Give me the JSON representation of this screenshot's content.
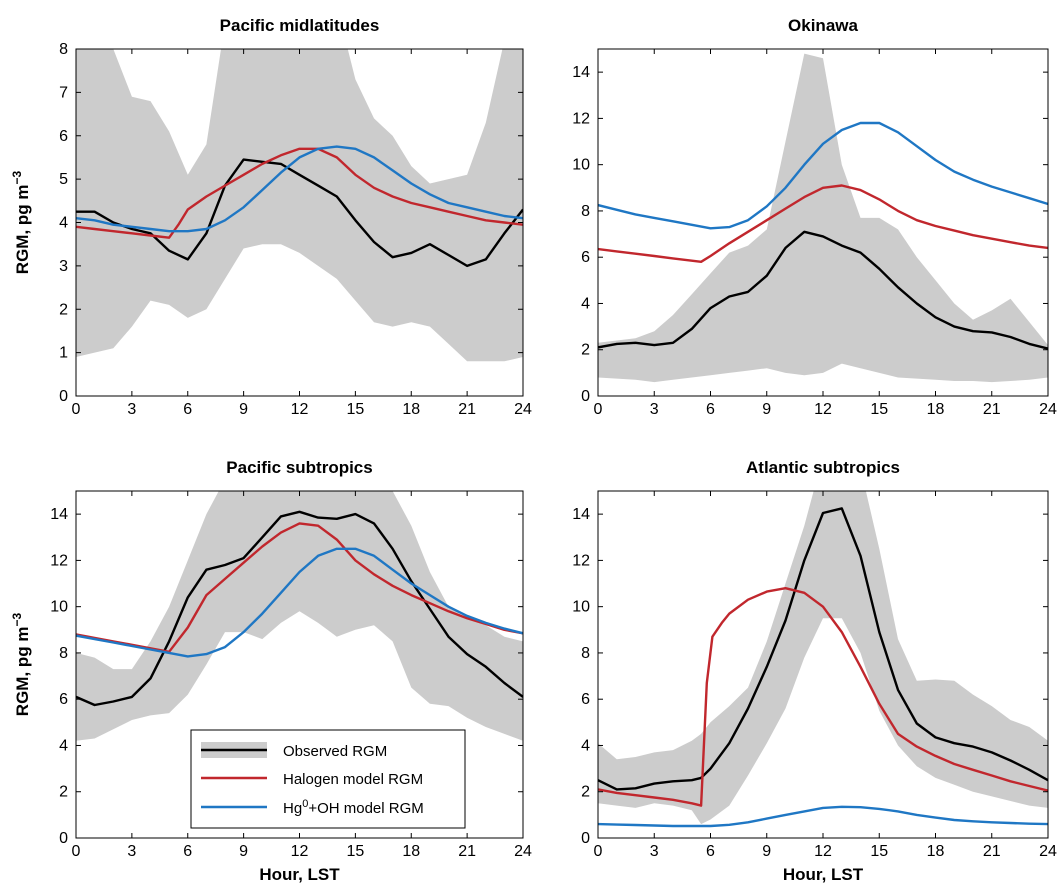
{
  "colors": {
    "band": "#cccccc",
    "observed": "#000000",
    "halogen": "#c1272d",
    "oh": "#1f77c4"
  },
  "legend": {
    "observed": "Observed RGM",
    "halogen": "Halogen model RGM",
    "oh_prefix": "Hg",
    "oh_sup": "0",
    "oh_suffix": "+OH model RGM"
  },
  "chart_data": [
    {
      "type": "line",
      "title": "Pacific midlatitudes",
      "xlabel": "",
      "ylabel": "RGM, pg m-3",
      "xlim": [
        0,
        24
      ],
      "ylim": [
        0,
        8
      ],
      "xticks": [
        0,
        3,
        6,
        9,
        12,
        15,
        18,
        21,
        24
      ],
      "yticks": [
        0,
        1,
        2,
        3,
        4,
        5,
        6,
        7,
        8
      ],
      "band": {
        "x": [
          0,
          1,
          2,
          3,
          4,
          5,
          6,
          7,
          8,
          9,
          10,
          11,
          12,
          13,
          14,
          15,
          16,
          17,
          18,
          19,
          20,
          21,
          22,
          23,
          24
        ],
        "upper": [
          8.6,
          8.3,
          8.0,
          6.9,
          6.8,
          6.1,
          5.1,
          5.8,
          8.6,
          9.5,
          9.8,
          9.9,
          9.8,
          9.5,
          9.0,
          7.3,
          6.4,
          6.0,
          5.3,
          4.9,
          5.0,
          5.1,
          6.3,
          8.2,
          9.5
        ],
        "lower": [
          0.9,
          1.0,
          1.1,
          1.6,
          2.2,
          2.1,
          1.8,
          2.0,
          2.7,
          3.4,
          3.5,
          3.5,
          3.3,
          3.0,
          2.7,
          2.2,
          1.7,
          1.6,
          1.7,
          1.6,
          1.2,
          0.8,
          0.8,
          0.8,
          0.9
        ]
      },
      "series": [
        {
          "name": "Observed RGM",
          "key": "observed",
          "x": [
            0,
            1,
            2,
            3,
            4,
            5,
            6,
            7,
            8,
            9,
            10,
            11,
            12,
            13,
            14,
            15,
            16,
            17,
            18,
            19,
            20,
            21,
            22,
            23,
            24
          ],
          "y": [
            4.25,
            4.25,
            4.0,
            3.85,
            3.75,
            3.35,
            3.15,
            3.75,
            4.85,
            5.45,
            5.4,
            5.35,
            5.1,
            4.85,
            4.6,
            4.05,
            3.55,
            3.2,
            3.3,
            3.5,
            3.25,
            3.0,
            3.15,
            3.75,
            4.3
          ]
        },
        {
          "name": "Halogen model RGM",
          "key": "halogen",
          "x": [
            0,
            1,
            2,
            3,
            4,
            5,
            5.5,
            6,
            7,
            8,
            9,
            10,
            11,
            12,
            13,
            14,
            15,
            16,
            17,
            18,
            19,
            20,
            21,
            22,
            23,
            24
          ],
          "y": [
            3.9,
            3.85,
            3.8,
            3.75,
            3.7,
            3.65,
            3.95,
            4.3,
            4.6,
            4.85,
            5.1,
            5.35,
            5.55,
            5.7,
            5.7,
            5.5,
            5.1,
            4.8,
            4.6,
            4.45,
            4.35,
            4.25,
            4.15,
            4.05,
            4.0,
            3.95
          ]
        },
        {
          "name": "Hg0+OH model RGM",
          "key": "oh",
          "x": [
            0,
            1,
            2,
            3,
            4,
            5,
            6,
            7,
            8,
            9,
            10,
            11,
            12,
            13,
            14,
            15,
            16,
            17,
            18,
            19,
            20,
            21,
            22,
            23,
            24
          ],
          "y": [
            4.1,
            4.05,
            3.95,
            3.9,
            3.85,
            3.8,
            3.8,
            3.85,
            4.05,
            4.35,
            4.75,
            5.15,
            5.5,
            5.7,
            5.75,
            5.7,
            5.5,
            5.2,
            4.9,
            4.65,
            4.45,
            4.35,
            4.25,
            4.15,
            4.1
          ]
        }
      ]
    },
    {
      "type": "line",
      "title": "Okinawa",
      "xlabel": "",
      "ylabel": "",
      "xlim": [
        0,
        24
      ],
      "ylim": [
        0,
        15
      ],
      "xticks": [
        0,
        3,
        6,
        9,
        12,
        15,
        18,
        21,
        24
      ],
      "yticks": [
        0,
        2,
        4,
        6,
        8,
        10,
        12,
        14
      ],
      "band": {
        "x": [
          0,
          1,
          2,
          3,
          4,
          5,
          6,
          7,
          8,
          9,
          10,
          11,
          12,
          13,
          14,
          15,
          16,
          17,
          18,
          19,
          20,
          21,
          22,
          23,
          24
        ],
        "upper": [
          2.3,
          2.4,
          2.5,
          2.8,
          3.5,
          4.4,
          5.3,
          6.2,
          6.5,
          7.2,
          11.0,
          14.8,
          14.6,
          10.0,
          7.7,
          7.7,
          7.2,
          6.0,
          5.0,
          4.0,
          3.3,
          3.7,
          4.2,
          3.2,
          2.2
        ],
        "lower": [
          0.8,
          0.75,
          0.7,
          0.6,
          0.7,
          0.8,
          0.9,
          1.0,
          1.1,
          1.2,
          1.0,
          0.9,
          1.0,
          1.4,
          1.2,
          1.0,
          0.8,
          0.75,
          0.7,
          0.65,
          0.65,
          0.6,
          0.65,
          0.7,
          0.8
        ]
      },
      "series": [
        {
          "name": "Observed RGM",
          "key": "observed",
          "x": [
            0,
            1,
            2,
            3,
            4,
            5,
            6,
            7,
            8,
            9,
            10,
            11,
            12,
            13,
            14,
            15,
            16,
            17,
            18,
            19,
            20,
            21,
            22,
            23,
            24
          ],
          "y": [
            2.1,
            2.25,
            2.3,
            2.2,
            2.3,
            2.9,
            3.8,
            4.3,
            4.5,
            5.2,
            6.4,
            7.1,
            6.9,
            6.5,
            6.2,
            5.5,
            4.7,
            4.0,
            3.4,
            3.0,
            2.8,
            2.75,
            2.55,
            2.25,
            2.05
          ]
        },
        {
          "name": "Halogen model RGM",
          "key": "halogen",
          "x": [
            0,
            1,
            2,
            3,
            4,
            5,
            5.5,
            6,
            7,
            8,
            9,
            10,
            11,
            12,
            13,
            14,
            15,
            16,
            17,
            18,
            19,
            20,
            21,
            22,
            23,
            24
          ],
          "y": [
            6.35,
            6.25,
            6.15,
            6.05,
            5.95,
            5.85,
            5.8,
            6.05,
            6.6,
            7.1,
            7.6,
            8.1,
            8.6,
            9.0,
            9.1,
            8.9,
            8.5,
            8.0,
            7.6,
            7.35,
            7.15,
            6.95,
            6.8,
            6.65,
            6.5,
            6.4
          ]
        },
        {
          "name": "Hg0+OH model RGM",
          "key": "oh",
          "x": [
            0,
            1,
            2,
            3,
            4,
            5,
            6,
            7,
            8,
            9,
            10,
            11,
            12,
            13,
            14,
            15,
            16,
            17,
            18,
            19,
            20,
            21,
            22,
            23,
            24
          ],
          "y": [
            8.25,
            8.05,
            7.85,
            7.7,
            7.55,
            7.4,
            7.25,
            7.3,
            7.6,
            8.2,
            9.0,
            10.0,
            10.9,
            11.5,
            11.8,
            11.8,
            11.4,
            10.8,
            10.2,
            9.7,
            9.35,
            9.05,
            8.8,
            8.55,
            8.3
          ]
        }
      ]
    },
    {
      "type": "line",
      "title": "Pacific subtropics",
      "xlabel": "Hour, LST",
      "ylabel": "RGM, pg m-3",
      "xlim": [
        0,
        24
      ],
      "ylim": [
        0,
        15
      ],
      "xticks": [
        0,
        3,
        6,
        9,
        12,
        15,
        18,
        21,
        24
      ],
      "yticks": [
        0,
        2,
        4,
        6,
        8,
        10,
        12,
        14
      ],
      "band": {
        "x": [
          0,
          1,
          2,
          3,
          4,
          5,
          6,
          7,
          8,
          9,
          10,
          11,
          12,
          13,
          14,
          15,
          16,
          17,
          18,
          19,
          20,
          21,
          22,
          23,
          24
        ],
        "upper": [
          8.0,
          7.8,
          7.3,
          7.3,
          8.5,
          10.0,
          12.0,
          14.0,
          15.5,
          16.5,
          17.0,
          17.5,
          17.5,
          17.5,
          17.5,
          17.5,
          17.3,
          15.0,
          13.5,
          11.5,
          10.0,
          9.5,
          9.2,
          8.7,
          8.5
        ],
        "lower": [
          4.2,
          4.3,
          4.7,
          5.1,
          5.3,
          5.4,
          6.2,
          7.5,
          8.9,
          8.9,
          8.6,
          9.3,
          9.8,
          9.3,
          8.7,
          9.0,
          9.2,
          8.5,
          6.5,
          5.8,
          5.7,
          5.2,
          4.8,
          4.5,
          4.2
        ]
      },
      "series": [
        {
          "name": "Observed RGM",
          "key": "observed",
          "x": [
            0,
            1,
            2,
            3,
            4,
            5,
            6,
            7,
            8,
            9,
            10,
            11,
            12,
            13,
            14,
            15,
            16,
            17,
            18,
            19,
            20,
            21,
            22,
            23,
            24
          ],
          "y": [
            6.1,
            5.75,
            5.9,
            6.1,
            6.9,
            8.5,
            10.4,
            11.6,
            11.8,
            12.1,
            13.0,
            13.9,
            14.1,
            13.85,
            13.8,
            14.0,
            13.6,
            12.5,
            11.1,
            9.9,
            8.7,
            7.95,
            7.4,
            6.7,
            6.1
          ]
        },
        {
          "name": "Halogen model RGM",
          "key": "halogen",
          "x": [
            0,
            1,
            2,
            3,
            4,
            5,
            6,
            7,
            8,
            9,
            10,
            11,
            12,
            13,
            14,
            15,
            16,
            17,
            18,
            19,
            20,
            21,
            22,
            23,
            24
          ],
          "y": [
            8.8,
            8.65,
            8.5,
            8.35,
            8.2,
            8.05,
            9.1,
            10.5,
            11.2,
            11.9,
            12.6,
            13.2,
            13.6,
            13.5,
            12.9,
            12.0,
            11.4,
            10.9,
            10.5,
            10.15,
            9.8,
            9.5,
            9.25,
            9.0,
            8.85
          ]
        },
        {
          "name": "Hg0+OH model RGM",
          "key": "oh",
          "x": [
            0,
            1,
            2,
            3,
            4,
            5,
            6,
            7,
            8,
            9,
            10,
            11,
            12,
            13,
            14,
            15,
            16,
            17,
            18,
            19,
            20,
            21,
            22,
            23,
            24
          ],
          "y": [
            8.75,
            8.6,
            8.45,
            8.3,
            8.15,
            8.0,
            7.85,
            7.95,
            8.25,
            8.9,
            9.7,
            10.6,
            11.5,
            12.2,
            12.5,
            12.5,
            12.2,
            11.6,
            11.0,
            10.5,
            10.0,
            9.6,
            9.3,
            9.05,
            8.85
          ]
        }
      ]
    },
    {
      "type": "line",
      "title": "Atlantic subtropics",
      "xlabel": "Hour, LST",
      "ylabel": "",
      "xlim": [
        0,
        24
      ],
      "ylim": [
        0,
        15
      ],
      "xticks": [
        0,
        3,
        6,
        9,
        12,
        15,
        18,
        21,
        24
      ],
      "yticks": [
        0,
        2,
        4,
        6,
        8,
        10,
        12,
        14
      ],
      "band": {
        "x": [
          0,
          1,
          2,
          3,
          4,
          5,
          5.5,
          6,
          7,
          8,
          9,
          10,
          11,
          12,
          13,
          14,
          15,
          16,
          17,
          18,
          19,
          20,
          21,
          22,
          23,
          24
        ],
        "upper": [
          4.1,
          3.4,
          3.5,
          3.7,
          3.8,
          4.2,
          4.5,
          5.0,
          5.7,
          6.5,
          8.5,
          11.0,
          13.5,
          16.5,
          17.0,
          16.0,
          12.5,
          8.6,
          6.8,
          6.85,
          6.8,
          6.2,
          5.7,
          5.1,
          4.8,
          4.2
        ],
        "lower": [
          1.5,
          1.4,
          1.3,
          1.5,
          1.4,
          1.2,
          0.6,
          0.8,
          1.4,
          2.7,
          4.1,
          5.6,
          7.8,
          9.5,
          9.5,
          8.0,
          5.5,
          4.0,
          3.1,
          2.6,
          2.3,
          2.0,
          1.8,
          1.6,
          1.4,
          1.3
        ]
      },
      "series": [
        {
          "name": "Observed RGM",
          "key": "observed",
          "x": [
            0,
            1,
            2,
            3,
            4,
            5,
            5.5,
            6,
            7,
            8,
            9,
            10,
            11,
            12,
            13,
            14,
            15,
            16,
            17,
            18,
            19,
            20,
            21,
            22,
            23,
            24
          ],
          "y": [
            2.5,
            2.1,
            2.15,
            2.35,
            2.45,
            2.5,
            2.6,
            3.0,
            4.1,
            5.6,
            7.4,
            9.4,
            12.0,
            14.05,
            14.25,
            12.2,
            8.9,
            6.4,
            4.95,
            4.35,
            4.1,
            3.95,
            3.7,
            3.35,
            2.95,
            2.5
          ]
        },
        {
          "name": "Halogen model RGM",
          "key": "halogen",
          "x": [
            0,
            1,
            2,
            3,
            4,
            5,
            5.5,
            5.8,
            6.1,
            6.6,
            7,
            8,
            9,
            10,
            11,
            12,
            13,
            14,
            15,
            16,
            17,
            18,
            19,
            20,
            21,
            22,
            23,
            24
          ],
          "y": [
            2.1,
            1.95,
            1.85,
            1.75,
            1.65,
            1.5,
            1.4,
            6.7,
            8.7,
            9.3,
            9.7,
            10.3,
            10.65,
            10.8,
            10.6,
            10.0,
            8.9,
            7.4,
            5.8,
            4.5,
            3.95,
            3.55,
            3.2,
            2.95,
            2.7,
            2.45,
            2.25,
            2.05
          ]
        },
        {
          "name": "Hg0+OH model RGM",
          "key": "oh",
          "x": [
            0,
            1,
            2,
            3,
            4,
            5,
            6,
            7,
            8,
            9,
            10,
            11,
            12,
            13,
            14,
            15,
            16,
            17,
            18,
            19,
            20,
            21,
            22,
            23,
            24
          ],
          "y": [
            0.6,
            0.58,
            0.56,
            0.54,
            0.52,
            0.52,
            0.52,
            0.57,
            0.68,
            0.84,
            1.0,
            1.15,
            1.3,
            1.35,
            1.33,
            1.26,
            1.15,
            1.0,
            0.88,
            0.78,
            0.72,
            0.68,
            0.65,
            0.62,
            0.6
          ]
        }
      ]
    }
  ]
}
